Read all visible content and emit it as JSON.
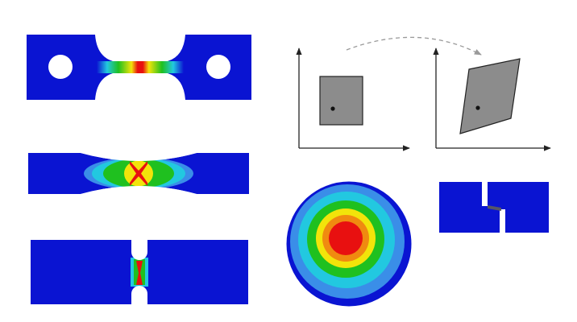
{
  "figure": {
    "colors": {
      "background": "#ffffff",
      "specimen_blue": "#0a14d2",
      "contour_lightblue": "#3a8ee8",
      "contour_cyan": "#22c8e0",
      "contour_green": "#1fc01f",
      "contour_yellow": "#f2e40a",
      "contour_orange": "#f08a10",
      "contour_red": "#e81010",
      "shear_fill": "#8c8c8c",
      "axis": "#222222",
      "arrow_dashed": "#9a9a9a"
    },
    "panels": [
      {
        "id": "dogbone-tensile-specimen",
        "hole_count": 2
      },
      {
        "id": "notched-tensile-specimen"
      },
      {
        "id": "deep-notch-specimen"
      },
      {
        "id": "shear-deformation-schematic",
        "arrow_style": "dashed-curved"
      },
      {
        "id": "punch-disk-specimen"
      },
      {
        "id": "shear-specimen"
      }
    ]
  }
}
